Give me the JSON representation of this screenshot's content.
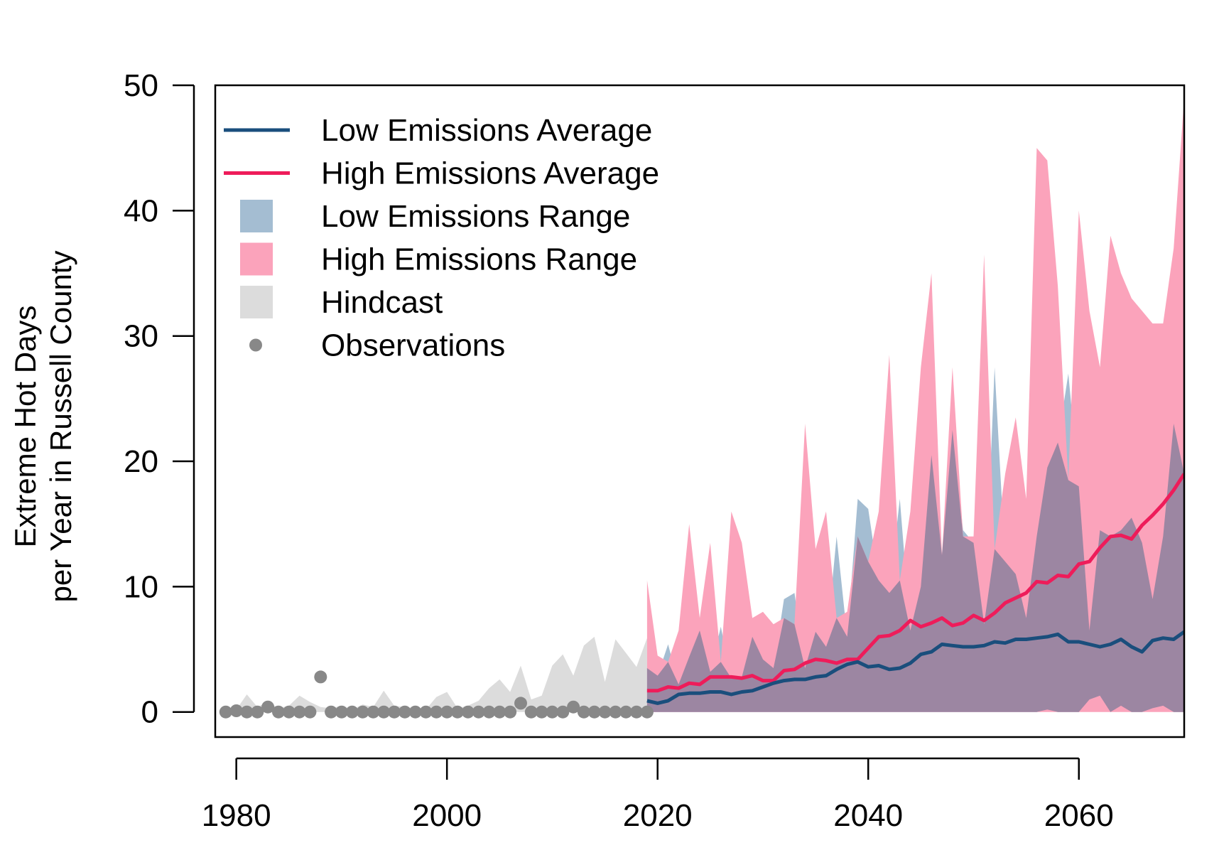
{
  "chart_data": {
    "type": "area",
    "title": "",
    "xlabel": "",
    "ylabel_lines": [
      "Extreme Hot Days",
      "per Year in Russell County"
    ],
    "xlim": [
      1978,
      2070
    ],
    "ylim": [
      -2,
      50
    ],
    "x_ticks": [
      1980,
      2000,
      2020,
      2040,
      2060
    ],
    "y_ticks": [
      0,
      10,
      20,
      30,
      40,
      50
    ],
    "grid": false,
    "legend_position": "top-left",
    "colors": {
      "low_avg": "#1a4e7c",
      "high_avg": "#ee1c5a",
      "low_range": "#a4bdd2",
      "high_range": "#fba3bb",
      "overlap": "#9c86a2",
      "hindcast": "#dcdcdc",
      "observations": "#888888"
    },
    "legend": [
      {
        "label": "Low Emissions Average",
        "kind": "line",
        "color": "#1a4e7c"
      },
      {
        "label": "High Emissions Average",
        "kind": "line",
        "color": "#ee1c5a"
      },
      {
        "label": "Low Emissions Range",
        "kind": "box",
        "color": "#a4bdd2"
      },
      {
        "label": "High Emissions Range",
        "kind": "box",
        "color": "#fba3bb"
      },
      {
        "label": "Hindcast",
        "kind": "box",
        "color": "#dcdcdc"
      },
      {
        "label": "Observations",
        "kind": "point",
        "color": "#888888"
      }
    ],
    "observations": {
      "x": [
        1979,
        1980,
        1981,
        1982,
        1983,
        1984,
        1985,
        1986,
        1987,
        1988,
        1989,
        1990,
        1991,
        1992,
        1993,
        1994,
        1995,
        1996,
        1997,
        1998,
        1999,
        2000,
        2001,
        2002,
        2003,
        2004,
        2005,
        2006,
        2007,
        2008,
        2009,
        2010,
        2011,
        2012,
        2013,
        2014,
        2015,
        2016,
        2017,
        2018,
        2019
      ],
      "y": [
        0,
        0.1,
        0,
        0,
        0.4,
        0,
        0,
        0,
        0,
        2.8,
        0,
        0,
        0,
        0,
        0,
        0,
        0,
        0,
        0,
        0,
        0,
        0,
        0,
        0,
        0,
        0,
        0,
        0,
        0.7,
        0,
        0,
        0,
        0,
        0.4,
        0,
        0,
        0,
        0,
        0,
        0,
        0
      ]
    },
    "hindcast": {
      "x": [
        1979,
        1980,
        1981,
        1982,
        1983,
        1984,
        1985,
        1986,
        1987,
        1988,
        1989,
        1990,
        1991,
        1992,
        1993,
        1994,
        1995,
        1996,
        1997,
        1998,
        1999,
        2000,
        2001,
        2002,
        2003,
        2004,
        2005,
        2006,
        2007,
        2008,
        2009,
        2010,
        2011,
        2012,
        2013,
        2014,
        2015,
        2016,
        2017,
        2018,
        2019
      ],
      "upper": [
        0,
        0.2,
        1.4,
        0.4,
        0.8,
        0.3,
        0.5,
        1.3,
        0.8,
        0.4,
        0.3,
        0.5,
        0.2,
        0.6,
        0.4,
        1.7,
        0.5,
        0.4,
        0.3,
        0.2,
        1.2,
        1.6,
        0.3,
        0.5,
        0.9,
        1.9,
        2.6,
        1.6,
        3.7,
        1.0,
        1.3,
        3.7,
        4.6,
        2.9,
        5.3,
        6.0,
        2.4,
        5.8,
        4.7,
        3.6,
        5.9
      ],
      "lower": [
        0,
        0,
        0,
        0,
        0,
        0,
        0,
        0,
        0,
        0,
        0,
        0,
        0,
        0,
        0,
        0,
        0,
        0,
        0,
        0,
        0,
        0,
        0,
        0,
        0,
        0,
        0,
        0,
        0,
        0,
        0,
        0,
        0,
        0,
        0,
        0,
        0,
        0,
        0,
        0,
        0
      ]
    },
    "series": [
      {
        "name": "Low Emissions Average",
        "x": [
          2019,
          2020,
          2021,
          2022,
          2023,
          2024,
          2025,
          2026,
          2027,
          2028,
          2029,
          2030,
          2031,
          2032,
          2033,
          2034,
          2035,
          2036,
          2037,
          2038,
          2039,
          2040,
          2041,
          2042,
          2043,
          2044,
          2045,
          2046,
          2047,
          2048,
          2049,
          2050,
          2051,
          2052,
          2053,
          2054,
          2055,
          2056,
          2057,
          2058,
          2059,
          2060,
          2061,
          2062,
          2063,
          2064,
          2065,
          2066,
          2067,
          2068,
          2069,
          2070
        ],
        "values": [
          0.9,
          0.7,
          0.9,
          1.4,
          1.5,
          1.5,
          1.6,
          1.6,
          1.4,
          1.6,
          1.7,
          2.0,
          2.3,
          2.5,
          2.6,
          2.6,
          2.8,
          2.9,
          3.4,
          3.8,
          4.0,
          3.6,
          3.7,
          3.4,
          3.5,
          3.9,
          4.6,
          4.8,
          5.4,
          5.3,
          5.2,
          5.2,
          5.3,
          5.6,
          5.5,
          5.8,
          5.8,
          5.9,
          6.0,
          6.2,
          5.6,
          5.6,
          5.4,
          5.2,
          5.4,
          5.8,
          5.2,
          4.8,
          5.7,
          5.9,
          5.8,
          6.4
        ]
      },
      {
        "name": "High Emissions Average",
        "x": [
          2019,
          2020,
          2021,
          2022,
          2023,
          2024,
          2025,
          2026,
          2027,
          2028,
          2029,
          2030,
          2031,
          2032,
          2033,
          2034,
          2035,
          2036,
          2037,
          2038,
          2039,
          2040,
          2041,
          2042,
          2043,
          2044,
          2045,
          2046,
          2047,
          2048,
          2049,
          2050,
          2051,
          2052,
          2053,
          2054,
          2055,
          2056,
          2057,
          2058,
          2059,
          2060,
          2061,
          2062,
          2063,
          2064,
          2065,
          2066,
          2067,
          2068,
          2069,
          2070
        ],
        "values": [
          1.7,
          1.7,
          2.0,
          1.9,
          2.3,
          2.2,
          2.8,
          2.8,
          2.8,
          2.7,
          2.9,
          2.5,
          2.5,
          3.3,
          3.4,
          3.9,
          4.2,
          4.1,
          3.9,
          4.2,
          4.2,
          5.1,
          6.0,
          6.1,
          6.5,
          7.3,
          6.8,
          7.1,
          7.5,
          6.9,
          7.1,
          7.7,
          7.3,
          7.9,
          8.7,
          9.1,
          9.5,
          10.4,
          10.3,
          10.9,
          10.8,
          11.8,
          12.0,
          13.1,
          14.0,
          14.1,
          13.8,
          14.9,
          15.7,
          16.6,
          17.7,
          19.0
        ]
      }
    ],
    "ranges": [
      {
        "name": "Low Emissions Range",
        "x": [
          2019,
          2020,
          2021,
          2022,
          2023,
          2024,
          2025,
          2026,
          2027,
          2028,
          2029,
          2030,
          2031,
          2032,
          2033,
          2034,
          2035,
          2036,
          2037,
          2038,
          2039,
          2040,
          2041,
          2042,
          2043,
          2044,
          2045,
          2046,
          2047,
          2048,
          2049,
          2050,
          2051,
          2052,
          2053,
          2054,
          2055,
          2056,
          2057,
          2058,
          2059,
          2060,
          2061,
          2062,
          2063,
          2064,
          2065,
          2066,
          2067,
          2068,
          2069,
          2070
        ],
        "upper": [
          3.5,
          2.9,
          5.4,
          2.2,
          4.4,
          6.5,
          3.2,
          6.8,
          2.7,
          2.8,
          6.0,
          4.2,
          3.5,
          9.0,
          9.5,
          3.5,
          6.4,
          5.2,
          14.0,
          6.0,
          17.0,
          16.2,
          10.5,
          9.5,
          17.0,
          6.5,
          10.0,
          20.5,
          12.5,
          22.5,
          14.5,
          13.5,
          7.0,
          27.5,
          12.0,
          11.0,
          7.5,
          14.0,
          19.5,
          21.5,
          27.0,
          18.0,
          6.5,
          14.5,
          14.0,
          14.5,
          15.5,
          13.5,
          9.0,
          14.0,
          23.0,
          19.0
        ],
        "lower": [
          0,
          0,
          0,
          0,
          0,
          0,
          0,
          0,
          0,
          0,
          0,
          0,
          0,
          0,
          0,
          0,
          0,
          0,
          0,
          0,
          0,
          0,
          0,
          0,
          0,
          0,
          0,
          0,
          0,
          0,
          0,
          0,
          0,
          0,
          0,
          0,
          0,
          0,
          0.2,
          0,
          0,
          0,
          1.0,
          1.3,
          0,
          0.5,
          0,
          0,
          0.3,
          0.5,
          0,
          0
        ]
      },
      {
        "name": "High Emissions Range",
        "x": [
          2019,
          2020,
          2021,
          2022,
          2023,
          2024,
          2025,
          2026,
          2027,
          2028,
          2029,
          2030,
          2031,
          2032,
          2033,
          2034,
          2035,
          2036,
          2037,
          2038,
          2039,
          2040,
          2041,
          2042,
          2043,
          2044,
          2045,
          2046,
          2047,
          2048,
          2049,
          2050,
          2051,
          2052,
          2053,
          2054,
          2055,
          2056,
          2057,
          2058,
          2059,
          2060,
          2061,
          2062,
          2063,
          2064,
          2065,
          2066,
          2067,
          2068,
          2069,
          2070
        ],
        "upper": [
          10.5,
          4.5,
          4.0,
          6.5,
          15.0,
          7.5,
          13.5,
          4.0,
          16.0,
          13.5,
          7.5,
          8.0,
          7.0,
          7.5,
          7.0,
          23.0,
          13.0,
          16.0,
          7.5,
          8.0,
          14.0,
          12.0,
          16.0,
          28.5,
          10.5,
          16.0,
          27.5,
          35.0,
          12.5,
          27.5,
          14.0,
          14.0,
          36.5,
          13.0,
          19.0,
          23.5,
          17.0,
          45.0,
          44.0,
          34.0,
          18.5,
          40.0,
          32.0,
          27.5,
          38.0,
          35.0,
          33.0,
          32.0,
          31.0,
          31.0,
          37.0,
          49.0
        ],
        "lower": [
          0,
          0,
          0,
          0,
          0,
          0,
          0,
          0,
          0,
          0,
          0,
          0,
          0,
          0,
          0,
          0,
          0,
          0,
          0,
          0,
          0,
          0,
          0,
          0,
          0,
          0,
          0,
          0,
          0,
          0,
          0,
          0,
          0,
          0,
          0,
          0,
          0,
          0,
          0,
          0,
          0,
          0,
          0,
          0,
          0,
          0,
          0,
          0,
          0,
          0,
          0,
          0
        ]
      }
    ]
  }
}
